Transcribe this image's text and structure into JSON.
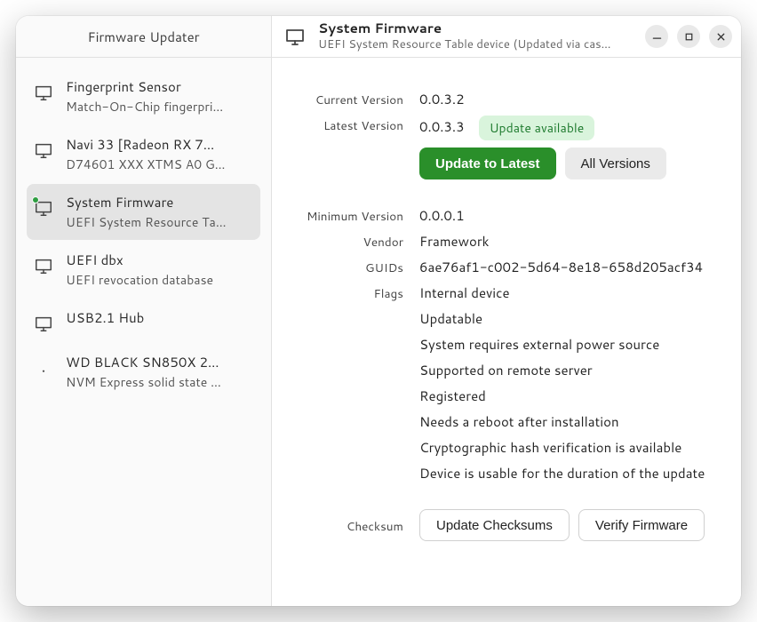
{
  "app": {
    "title": "Firmware Updater"
  },
  "colors": {
    "primary_button_bg": "#2a8f2a",
    "pill_bg": "#d9f4dc",
    "pill_fg": "#1e7a2e",
    "update_dot": "#2e9e41"
  },
  "sidebar": {
    "items": [
      {
        "name": "Fingerprint Sensor",
        "desc": "Match-On-Chip fingerpri…",
        "icon": "monitor",
        "selected": false,
        "has_update": false
      },
      {
        "name": "Navi 33 [Radeon RX 7…",
        "desc": "D74601 XXX XTMS A0 G…",
        "icon": "monitor",
        "selected": false,
        "has_update": false
      },
      {
        "name": "System Firmware",
        "desc": "UEFI System Resource Ta…",
        "icon": "monitor",
        "selected": true,
        "has_update": true
      },
      {
        "name": "UEFI dbx",
        "desc": "UEFI revocation database",
        "icon": "monitor",
        "selected": false,
        "has_update": false
      },
      {
        "name": "USB2.1 Hub",
        "desc": "",
        "icon": "monitor",
        "selected": false,
        "has_update": false
      },
      {
        "name": "WD BLACK SN850X 2…",
        "desc": "NVM Express solid state …",
        "icon": "drive",
        "selected": false,
        "has_update": false
      }
    ]
  },
  "header": {
    "title": "System Firmware",
    "subtitle": "UEFI System Resource Table device (Updated via cas…"
  },
  "detail": {
    "labels": {
      "current_version": "Current Version",
      "latest_version": "Latest Version",
      "minimum_version": "Minimum Version",
      "vendor": "Vendor",
      "guids": "GUIDs",
      "flags": "Flags",
      "checksum": "Checksum"
    },
    "current_version": "0.0.3.2",
    "latest_version": "0.0.3.3",
    "update_available_text": "Update available",
    "buttons": {
      "update_latest": "Update to Latest",
      "all_versions": "All Versions",
      "update_checksums": "Update Checksums",
      "verify_firmware": "Verify Firmware"
    },
    "minimum_version": "0.0.0.1",
    "vendor": "Framework",
    "guids": "6ae76af1-c002-5d64-8e18-658d205acf34",
    "flags": [
      "Internal device",
      "Updatable",
      "System requires external power source",
      "Supported on remote server",
      "Registered",
      "Needs a reboot after installation",
      "Cryptographic hash verification is available",
      "Device is usable for the duration of the update"
    ]
  }
}
